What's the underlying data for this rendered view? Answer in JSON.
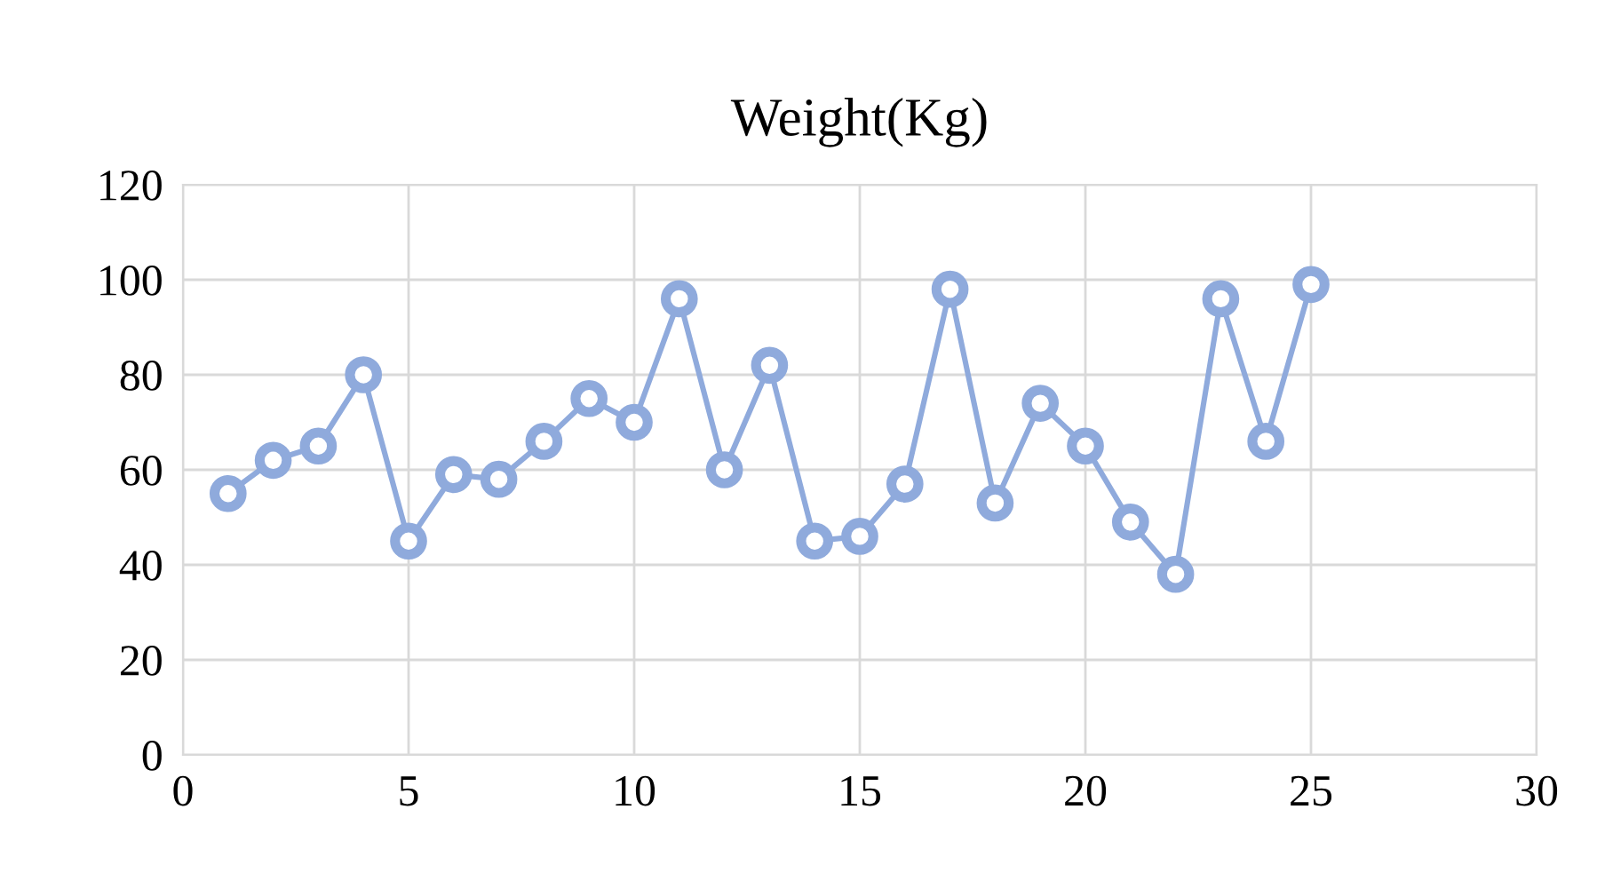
{
  "chart_data": {
    "type": "line",
    "title": "Weight(Kg)",
    "x": [
      1,
      2,
      3,
      4,
      5,
      6,
      7,
      8,
      9,
      10,
      11,
      12,
      13,
      14,
      15,
      16,
      17,
      18,
      19,
      20,
      21,
      22,
      23,
      24,
      25
    ],
    "series": [
      {
        "color": "#8faadc",
        "values": [
          55,
          62,
          65,
          80,
          45,
          59,
          58,
          66,
          75,
          70,
          96,
          60,
          82,
          45,
          46,
          57,
          98,
          53,
          74,
          65,
          49,
          38,
          96,
          66,
          99
        ]
      }
    ],
    "xlim": [
      0,
      30
    ],
    "xticks": [
      0,
      5,
      10,
      15,
      20,
      25,
      30
    ],
    "ylim": [
      0,
      120
    ],
    "yticks": [
      0,
      20,
      40,
      60,
      80,
      100,
      120
    ],
    "grid": true,
    "marker": "circle",
    "line_style": "solid",
    "legend": false
  }
}
